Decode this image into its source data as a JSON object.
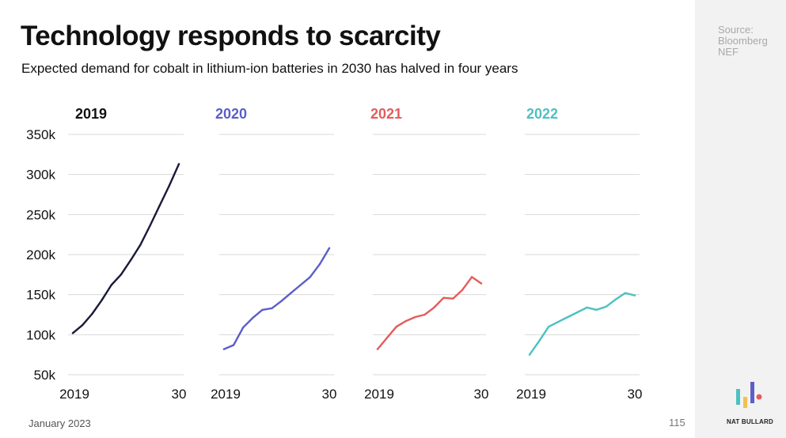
{
  "header": {
    "title": "Technology responds to scarcity",
    "subtitle": "Expected demand for cobalt in lithium-ion batteries in 2030 has halved in four years"
  },
  "source": {
    "label": "Source: Bloomberg NEF"
  },
  "footer": {
    "date": "January 2023",
    "page_number": "115",
    "brand": "NAT BULLARD"
  },
  "colors": {
    "2019": "#1a1a3a",
    "2020": "#5b5fc7",
    "2021": "#e55b5b",
    "2022": "#4fc0c0",
    "grid": "#d9d9d9"
  },
  "chart_data": {
    "type": "line",
    "layout": "small-multiples",
    "x": [
      2019,
      2020,
      2021,
      2022,
      2023,
      2024,
      2025,
      2026,
      2027,
      2028,
      2029,
      2030
    ],
    "x_tick_labels": [
      "2019",
      "30"
    ],
    "ylim": [
      50000,
      350000
    ],
    "y_ticks": [
      50000,
      100000,
      150000,
      200000,
      250000,
      300000,
      350000
    ],
    "y_tick_labels": [
      "50k",
      "100k",
      "150k",
      "200k",
      "250k",
      "300k",
      "350k"
    ],
    "grid": true,
    "series": [
      {
        "name": "2019",
        "color": "#1a1a3a",
        "values": [
          102000,
          112000,
          126000,
          143000,
          162000,
          175000,
          193000,
          212000,
          236000,
          261000,
          286000,
          313000
        ]
      },
      {
        "name": "2020",
        "color": "#5b5fc7",
        "values": [
          82000,
          87000,
          109000,
          121000,
          131000,
          133000,
          142000,
          152000,
          162000,
          172000,
          188000,
          208000
        ]
      },
      {
        "name": "2021",
        "color": "#e55b5b",
        "values": [
          82000,
          96000,
          110000,
          117000,
          122000,
          125000,
          134000,
          146000,
          145000,
          156000,
          172000,
          164000
        ]
      },
      {
        "name": "2022",
        "color": "#4fc0c0",
        "values": [
          75000,
          92000,
          110000,
          116000,
          122000,
          128000,
          134000,
          131000,
          135000,
          144000,
          152000,
          149000
        ]
      }
    ]
  }
}
